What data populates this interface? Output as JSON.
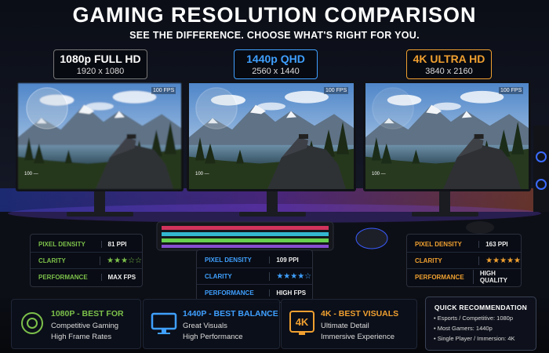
{
  "header": {
    "title": "GAMING RESOLUTION COMPARISON",
    "subtitle": "SEE THE DIFFERENCE. CHOOSE WHAT'S RIGHT FOR YOU."
  },
  "monitors": [
    {
      "label": "1080p FULL HD",
      "resolution": "1920 x 1080",
      "fps": "100 FPS",
      "hud": "100 —",
      "stats": [
        {
          "name": "PIXEL DENSITY",
          "value": "81 PPI"
        },
        {
          "name": "CLARITY",
          "value": "★★★☆☆"
        },
        {
          "name": "PERFORMANCE",
          "value": "MAX FPS"
        }
      ]
    },
    {
      "label": "1440p QHD",
      "resolution": "2560 x 1440",
      "fps": "100 FPS",
      "hud": "100 —",
      "stats": [
        {
          "name": "PIXEL DENSITY",
          "value": "109 PPI"
        },
        {
          "name": "CLARITY",
          "value": "★★★★☆"
        },
        {
          "name": "PERFORMANCE",
          "value": "HIGH FPS"
        }
      ]
    },
    {
      "label": "4K ULTRA HD",
      "resolution": "3840 x 2160",
      "fps": "100 FPS",
      "hud": "100 —",
      "stats": [
        {
          "name": "PIXEL DENSITY",
          "value": "163 PPI"
        },
        {
          "name": "CLARITY",
          "value": "★★★★★"
        },
        {
          "name": "PERFORMANCE",
          "value": "HIGH QUALITY"
        }
      ]
    }
  ],
  "cards": [
    {
      "title": "1080P - BEST FOR",
      "lines": [
        "Competitive Gaming",
        "High Frame Rates"
      ]
    },
    {
      "title": "1440P - BEST BALANCE",
      "lines": [
        "Great Visuals",
        "High Performance"
      ]
    },
    {
      "title": "4K - BEST VISUALS",
      "icon_text": "4K",
      "lines": [
        "Ultimate Detail",
        "Immersive Experience"
      ]
    }
  ],
  "recommendation": {
    "title": "QUICK RECOMMENDATION",
    "items": [
      "Esports / Competitive: 1080p",
      "Most Gamers: 1440p",
      "Single Player / Immersion: 4K"
    ]
  }
}
